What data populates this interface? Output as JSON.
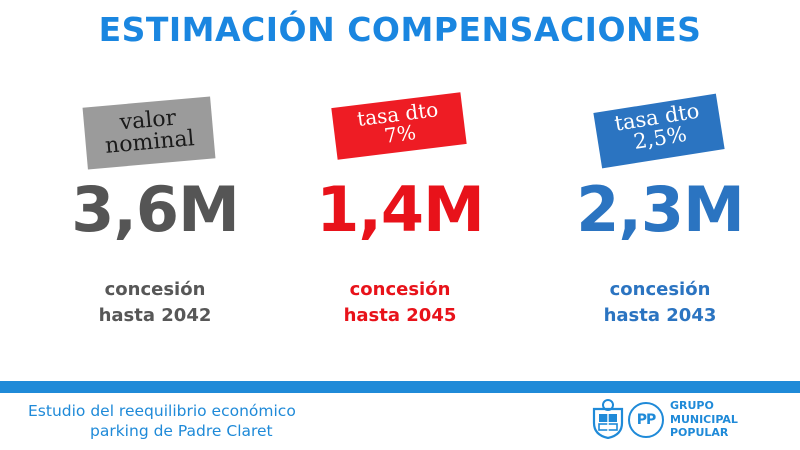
{
  "title": "ESTIMACIÓN COMPENSACIONES",
  "columns": [
    {
      "tag_line1": "valor",
      "tag_line2": "nominal",
      "value": "3,6M",
      "line1": "concesión",
      "line2": "hasta 2042",
      "color": "#555555",
      "tag_color": "#9b9b9b"
    },
    {
      "tag_line1": "tasa dto",
      "tag_line2": "7%",
      "value": "1,4M",
      "line1": "concesión",
      "line2": "hasta 2045",
      "color": "#e8121a",
      "tag_color": "#ee1c24"
    },
    {
      "tag_line1": "tasa dto",
      "tag_line2": "2,5%",
      "value": "2,3M",
      "line1": "concesión",
      "line2": "hasta 2043",
      "color": "#2b74c1",
      "tag_color": "#2b74c1"
    }
  ],
  "footer": {
    "line1": "Estudio del reequilibrio económico",
    "line2": "parking de Padre Claret",
    "accent_color": "#1f8ad8"
  },
  "logo": {
    "mark_text": "PP",
    "name_line1": "GRUPO",
    "name_line2": "MUNICIPAL",
    "name_line3": "POPULAR",
    "icons": [
      "coat-of-arms-icon",
      "pp-seagull-logo-icon"
    ]
  }
}
